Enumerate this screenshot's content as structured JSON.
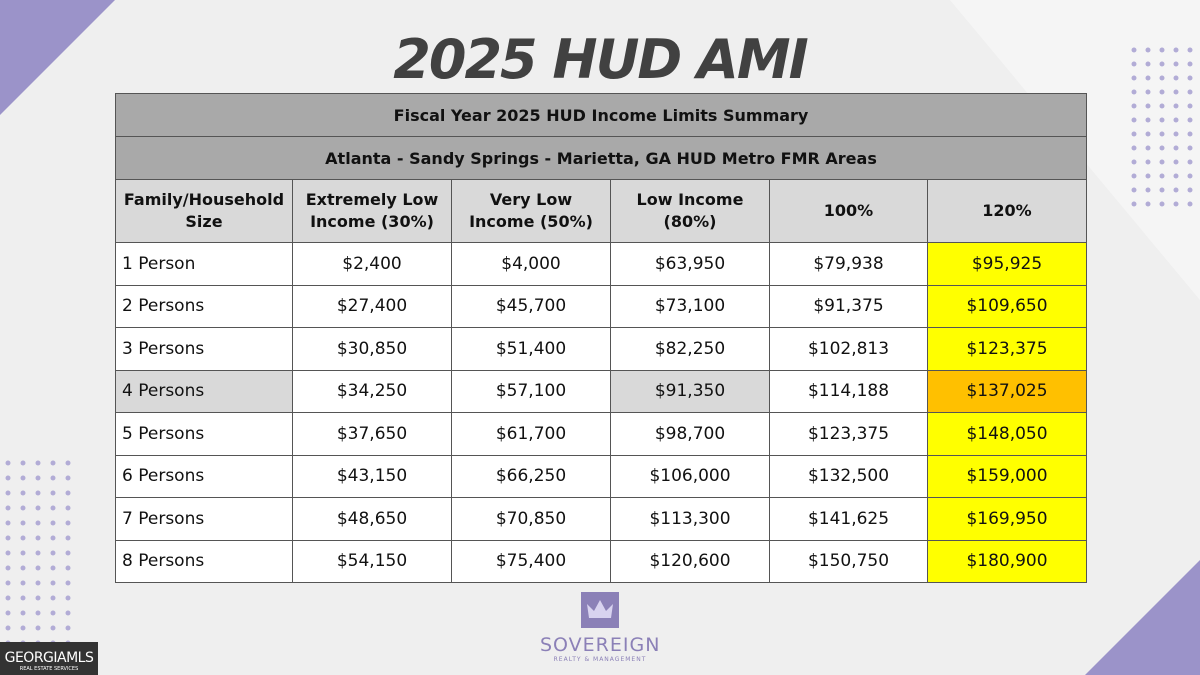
{
  "header": {
    "title": "2025 HUD AMI"
  },
  "table": {
    "title": "Fiscal Year 2025 HUD Income Limits Summary",
    "subtitle": "Atlanta - Sandy Springs - Marietta, GA HUD Metro FMR Areas",
    "columns": [
      "Family/Household Size",
      "Extremely Low Income (30%)",
      "Very Low Income (50%)",
      "Low Income (80%)",
      "100%",
      "120%"
    ],
    "rows": [
      [
        "1 Person",
        "$2,400",
        "$4,000",
        "$63,950",
        "$79,938",
        "$95,925"
      ],
      [
        "2 Persons",
        "$27,400",
        "$45,700",
        "$73,100",
        "$91,375",
        "$109,650"
      ],
      [
        "3 Persons",
        "$30,850",
        "$51,400",
        "$82,250",
        "$102,813",
        "$123,375"
      ],
      [
        "4 Persons",
        "$34,250",
        "$57,100",
        "$91,350",
        "$114,188",
        "$137,025"
      ],
      [
        "5 Persons",
        "$37,650",
        "$61,700",
        "$98,700",
        "$123,375",
        "$148,050"
      ],
      [
        "6 Persons",
        "$43,150",
        "$66,250",
        "$106,000",
        "$132,500",
        "$159,000"
      ],
      [
        "7 Persons",
        "$48,650",
        "$70,850",
        "$113,300",
        "$141,625",
        "$169,950"
      ],
      [
        "8 Persons",
        "$54,150",
        "$75,400",
        "$120,600",
        "$150,750",
        "$180,900"
      ]
    ]
  },
  "logo": {
    "name": "SOVEREIGN",
    "tagline": "REALTY & MANAGEMENT"
  },
  "badge": {
    "name": "GEORGIAMLS",
    "tagline": "REAL ESTATE SERVICES"
  }
}
